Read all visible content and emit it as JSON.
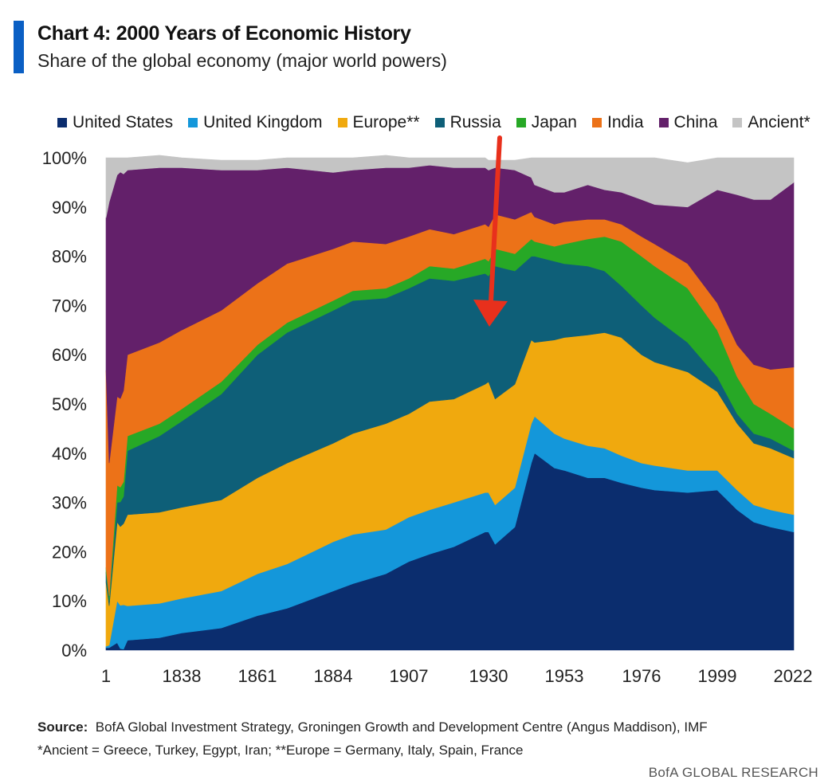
{
  "header": {
    "title": "Chart 4: 2000 Years of Economic History",
    "subtitle": "Share of the global economy (major world powers)",
    "accent_color": "#0a5fc4"
  },
  "footer": {
    "source_label": "Source:",
    "source_text": "BofA Global Investment Strategy, Groningen Growth and Development Centre (Angus Maddison),  IMF",
    "footnote": "*Ancient = Greece, Turkey, Egypt, Iran; **Europe = Germany, Italy, Spain, France",
    "brand": "BofA GLOBAL RESEARCH"
  },
  "chart_data": {
    "type": "area",
    "stacked": true,
    "title": "Chart 4: 2000 Years of Economic History",
    "subtitle": "Share of the global economy (major world powers)",
    "x_tick_labels": [
      "1",
      "1838",
      "1861",
      "1884",
      "1907",
      "1930",
      "1953",
      "1976",
      "1999",
      "2022"
    ],
    "y_tick_labels": [
      "0%",
      "10%",
      "20%",
      "30%",
      "40%",
      "50%",
      "60%",
      "70%",
      "80%",
      "90%",
      "100%"
    ],
    "ylim": [
      0,
      100
    ],
    "legend_position": "top",
    "annotation": {
      "type": "arrow",
      "color": "#e8301c",
      "points_to_year": 1930
    },
    "x": [
      "1",
      "1000",
      "1500",
      "1600",
      "1700",
      "1820",
      "1830",
      "1838",
      "1850",
      "1861",
      "1870",
      "1884",
      "1890",
      "1900",
      "1907",
      "1913",
      "1920",
      "1929",
      "1930",
      "1932",
      "1938",
      "1943",
      "1944",
      "1950",
      "1953",
      "1960",
      "1965",
      "1970",
      "1976",
      "1980",
      "1990",
      "1999",
      "2005",
      "2010",
      "2015",
      "2022"
    ],
    "series": [
      {
        "name": "United States",
        "color": "#0b2d6e",
        "values": [
          0.5,
          0.5,
          1.5,
          0.3,
          0.2,
          2.0,
          2.5,
          3.5,
          4.5,
          7.0,
          8.5,
          12.0,
          13.5,
          15.5,
          18.0,
          19.5,
          21.0,
          24.0,
          24.0,
          21.5,
          25.0,
          38.0,
          40.0,
          37.0,
          36.5,
          35.0,
          35.0,
          34.0,
          33.0,
          32.5,
          32.0,
          32.5,
          28.5,
          26.0,
          25.0,
          24.0
        ]
      },
      {
        "name": "United Kingdom",
        "color": "#1497da",
        "values": [
          0.3,
          0.5,
          8.5,
          8.8,
          9.0,
          7.0,
          7.0,
          7.0,
          7.5,
          8.5,
          9.0,
          10.0,
          10.0,
          9.0,
          9.0,
          9.0,
          9.0,
          8.0,
          8.0,
          8.0,
          8.0,
          8.0,
          7.5,
          7.0,
          6.5,
          6.5,
          6.0,
          5.5,
          5.0,
          5.0,
          4.5,
          4.0,
          4.0,
          3.5,
          3.5,
          3.5
        ]
      },
      {
        "name": "Europe**",
        "color": "#f0a90e",
        "values": [
          13.0,
          8.0,
          16.0,
          16.0,
          16.5,
          18.5,
          18.5,
          18.5,
          18.5,
          19.5,
          20.5,
          20.0,
          20.5,
          21.5,
          21.0,
          22.0,
          21.0,
          22.0,
          22.5,
          21.5,
          21.0,
          17.0,
          15.0,
          19.0,
          20.5,
          22.5,
          23.5,
          24.0,
          22.0,
          21.0,
          20.0,
          16.0,
          13.5,
          12.5,
          12.5,
          11.5
        ]
      },
      {
        "name": "Russia",
        "color": "#0e5f78",
        "values": [
          2.0,
          1.0,
          4.0,
          5.0,
          5.5,
          13.0,
          15.5,
          17.5,
          21.5,
          25.0,
          26.5,
          27.0,
          27.0,
          25.5,
          25.5,
          25.0,
          24.0,
          22.5,
          21.5,
          27.0,
          23.0,
          17.0,
          17.5,
          16.0,
          15.0,
          14.0,
          12.5,
          10.5,
          10.0,
          9.0,
          6.0,
          3.0,
          2.0,
          2.0,
          2.0,
          1.5
        ]
      },
      {
        "name": "Japan",
        "color": "#27a826",
        "values": [
          1.0,
          1.0,
          3.5,
          3.0,
          3.0,
          3.0,
          2.5,
          2.5,
          2.5,
          2.0,
          2.0,
          2.0,
          2.0,
          2.0,
          2.0,
          2.5,
          2.5,
          3.0,
          3.0,
          3.5,
          3.5,
          3.5,
          3.0,
          3.0,
          4.0,
          5.5,
          7.0,
          9.0,
          10.0,
          10.5,
          11.0,
          9.5,
          7.5,
          6.0,
          5.0,
          4.5
        ]
      },
      {
        "name": "India",
        "color": "#ec7218",
        "values": [
          40.0,
          27.0,
          18.0,
          18.0,
          18.5,
          16.5,
          16.5,
          16.0,
          14.5,
          12.5,
          12.0,
          10.5,
          10.0,
          9.0,
          8.5,
          7.5,
          7.0,
          7.0,
          7.0,
          7.0,
          7.0,
          5.5,
          5.0,
          4.5,
          4.5,
          4.0,
          3.5,
          3.5,
          4.0,
          4.5,
          5.0,
          5.5,
          6.5,
          8.0,
          9.0,
          12.5
        ]
      },
      {
        "name": "China",
        "color": "#63206a",
        "values": [
          31.0,
          53.0,
          45.0,
          46.0,
          44.0,
          37.5,
          35.5,
          33.0,
          28.5,
          23.0,
          19.5,
          15.5,
          14.5,
          15.5,
          14.0,
          13.0,
          13.5,
          11.5,
          11.5,
          9.5,
          10.0,
          7.0,
          6.5,
          6.5,
          6.0,
          7.0,
          6.0,
          6.5,
          7.5,
          8.0,
          11.5,
          23.0,
          30.5,
          33.5,
          34.5,
          37.5
        ]
      },
      {
        "name": "Ancient*",
        "color": "#c4c4c4",
        "values": [
          12.2,
          9.0,
          3.5,
          2.9,
          3.3,
          2.5,
          2.5,
          2.0,
          2.0,
          2.0,
          2.0,
          3.0,
          2.5,
          2.5,
          2.0,
          1.5,
          2.0,
          2.0,
          2.0,
          1.5,
          2.0,
          4.0,
          5.5,
          7.0,
          7.0,
          5.5,
          6.5,
          7.0,
          8.5,
          9.5,
          9.0,
          6.5,
          7.5,
          8.5,
          8.5,
          5.0
        ]
      }
    ]
  }
}
